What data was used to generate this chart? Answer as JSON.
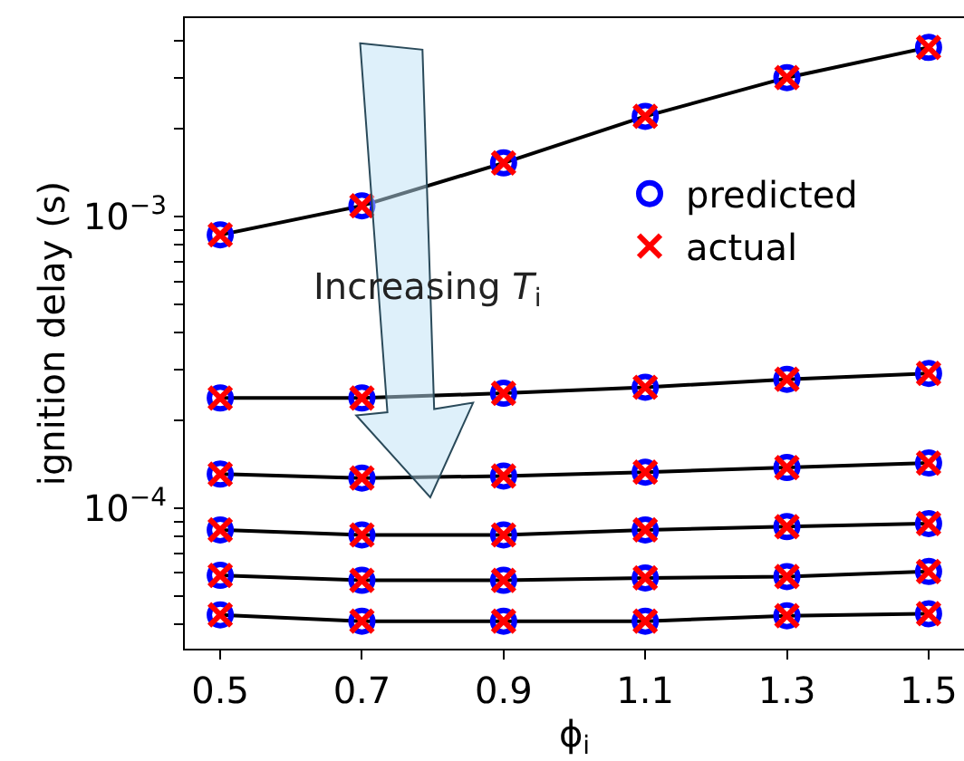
{
  "chart_data": {
    "type": "line",
    "xlabel": "ϕ$_{i}$",
    "ylabel": "ignition delay (s)",
    "annotations": [
      "Increasing T$_{i}$"
    ],
    "x": [
      0.5,
      0.7,
      0.9,
      1.1,
      1.3,
      1.5
    ],
    "series": [
      {
        "color": "#000000",
        "marker": "none",
        "values": [
          0.000867,
          0.00109,
          0.00153,
          0.00221,
          0.003,
          0.00381
        ]
      },
      {
        "color": "#000000",
        "marker": "none",
        "values": [
          0.000239,
          0.000239,
          0.000248,
          0.00026,
          0.000277,
          0.00029
        ]
      },
      {
        "color": "#000000",
        "marker": "none",
        "values": [
          0.000131,
          0.000127,
          0.000129,
          0.000133,
          0.000138,
          0.000143
        ]
      },
      {
        "color": "#000000",
        "marker": "none",
        "values": [
          8.43e-05,
          8.1e-05,
          8.1e-05,
          8.43e-05,
          8.65e-05,
          8.86e-05
        ]
      },
      {
        "color": "#000000",
        "marker": "none",
        "values": [
          5.89e-05,
          5.66e-05,
          5.66e-05,
          5.77e-05,
          5.83e-05,
          6.07e-05
        ]
      },
      {
        "color": "#000000",
        "marker": "none",
        "values": [
          4.31e-05,
          4.1e-05,
          4.1e-05,
          4.1e-05,
          4.28e-05,
          4.35e-05
        ]
      },
      {
        "type": "scatter",
        "name": "predicted",
        "color": "#0000ff",
        "marker": "circle",
        "x": [
          0.5,
          0.7,
          0.9,
          1.1,
          1.3,
          1.5,
          0.5,
          0.7,
          0.9,
          1.1,
          1.3,
          1.5,
          0.5,
          0.7,
          0.9,
          1.1,
          1.3,
          1.5,
          0.5,
          0.7,
          0.9,
          1.1,
          1.3,
          1.5,
          0.5,
          0.7,
          0.9,
          1.1,
          1.3,
          1.5,
          0.5,
          0.7,
          0.9,
          1.1,
          1.3,
          1.5
        ],
        "values": [
          0.000867,
          0.00109,
          0.00153,
          0.00221,
          0.003,
          0.00381,
          0.000239,
          0.000239,
          0.000248,
          0.00026,
          0.000277,
          0.00029,
          0.000131,
          0.000127,
          0.000129,
          0.000133,
          0.000138,
          0.000143,
          8.43e-05,
          8.1e-05,
          8.1e-05,
          8.43e-05,
          8.65e-05,
          8.86e-05,
          5.89e-05,
          5.66e-05,
          5.66e-05,
          5.77e-05,
          5.83e-05,
          6.07e-05,
          4.31e-05,
          4.1e-05,
          4.1e-05,
          4.1e-05,
          4.28e-05,
          4.35e-05
        ]
      },
      {
        "type": "scatter",
        "name": "actual",
        "color": "#ff0000",
        "marker": "cross",
        "x": [
          0.5,
          0.7,
          0.9,
          1.1,
          1.3,
          1.5,
          0.5,
          0.7,
          0.9,
          1.1,
          1.3,
          1.5,
          0.5,
          0.7,
          0.9,
          1.1,
          1.3,
          1.5,
          0.5,
          0.7,
          0.9,
          1.1,
          1.3,
          1.5,
          0.5,
          0.7,
          0.9,
          1.1,
          1.3,
          1.5,
          0.5,
          0.7,
          0.9,
          1.1,
          1.3,
          1.5
        ],
        "values": [
          0.000867,
          0.00109,
          0.00153,
          0.00221,
          0.003,
          0.00381,
          0.000239,
          0.000239,
          0.000248,
          0.00026,
          0.000277,
          0.00029,
          0.000131,
          0.000127,
          0.000129,
          0.000133,
          0.000138,
          0.000143,
          8.43e-05,
          8.1e-05,
          8.1e-05,
          8.43e-05,
          8.65e-05,
          8.86e-05,
          5.89e-05,
          5.66e-05,
          5.66e-05,
          5.77e-05,
          5.83e-05,
          6.07e-05,
          4.31e-05,
          4.1e-05,
          4.1e-05,
          4.1e-05,
          4.28e-05,
          4.35e-05
        ]
      }
    ],
    "log": "y",
    "legend": "right",
    "xlim": [
      0.45,
      1.55
    ],
    "xticks": [
      0.5,
      0.7,
      0.9,
      1.1,
      1.3,
      1.5
    ],
    "ylim": [
      3.3e-05,
      0.0048
    ],
    "yticks": [
      {
        "value": 4e-05,
        "label": null
      },
      {
        "value": 5e-05,
        "label": null
      },
      {
        "value": 6e-05,
        "label": null
      },
      {
        "value": 7e-05,
        "label": null
      },
      {
        "value": 8e-05,
        "label": null
      },
      {
        "value": 9e-05,
        "label": null
      },
      {
        "value": 0.0001,
        "label": "10$^{−4}$"
      },
      {
        "value": 0.0002,
        "label": null
      },
      {
        "value": 0.0003,
        "label": null
      },
      {
        "value": 0.0004,
        "label": null
      },
      {
        "value": 0.0005,
        "label": null
      },
      {
        "value": 0.0006,
        "label": null
      },
      {
        "value": 0.0007,
        "label": null
      },
      {
        "value": 0.0008,
        "label": null
      },
      {
        "value": 0.0009,
        "label": null
      },
      {
        "value": 0.001,
        "label": "10$^{−3}$"
      },
      {
        "value": 0.002,
        "label": null
      },
      {
        "value": 0.003,
        "label": null
      },
      {
        "value": 0.004,
        "label": null
      }
    ]
  }
}
